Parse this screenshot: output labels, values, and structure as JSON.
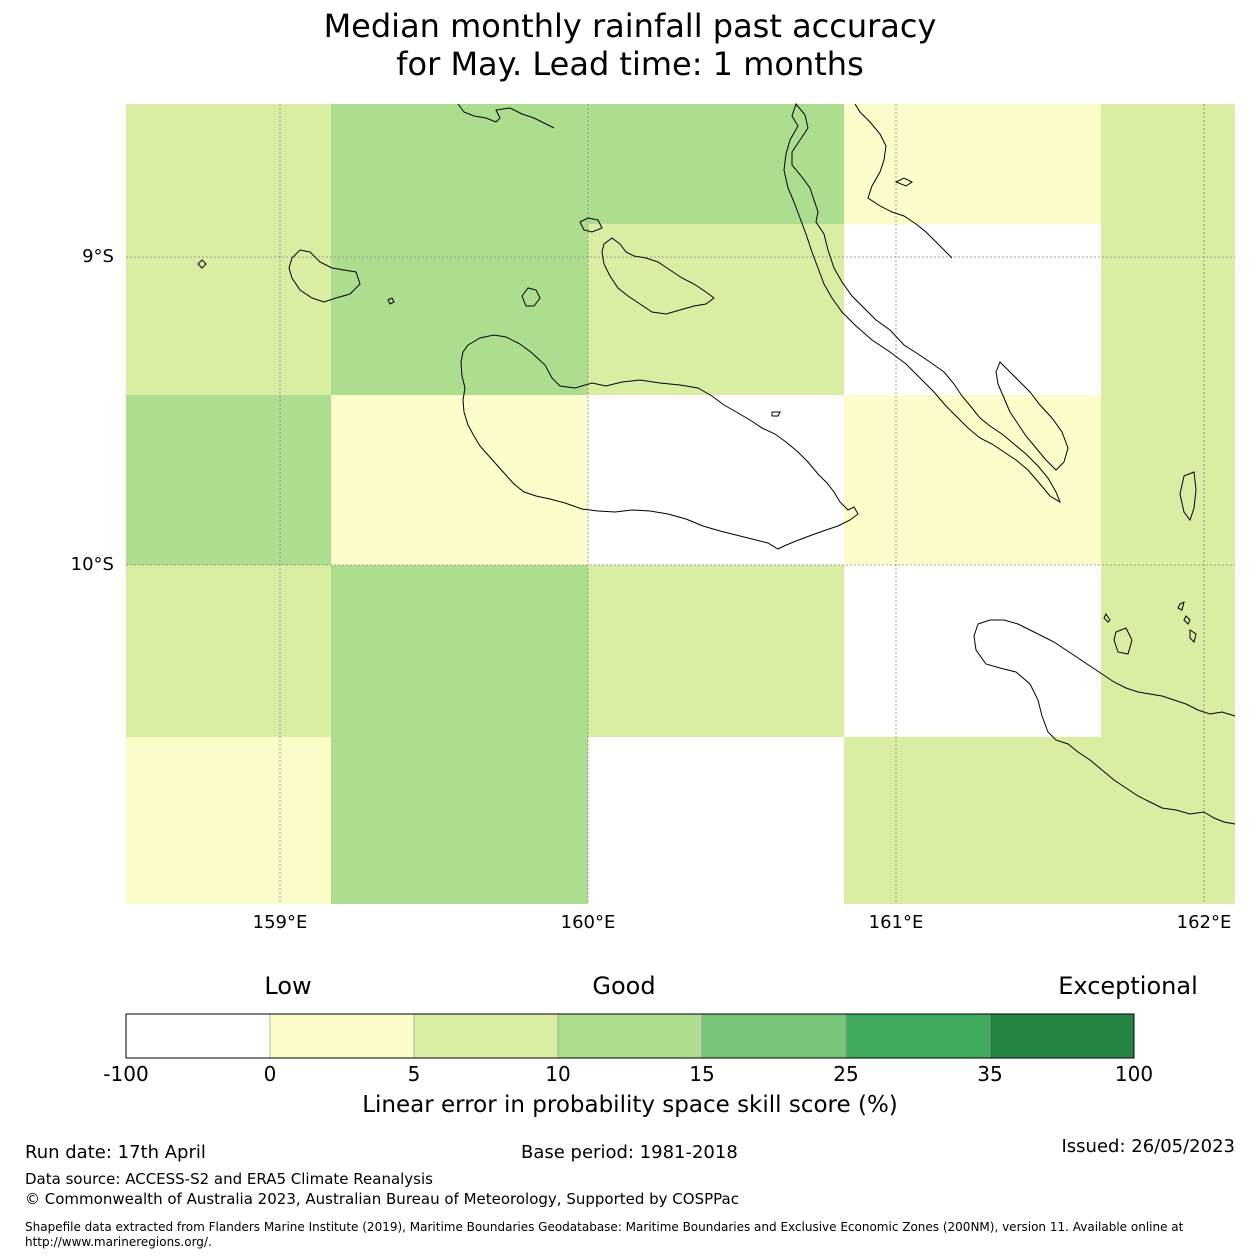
{
  "title": {
    "line1": "Median monthly rainfall past accuracy",
    "line2": "for May. Lead time: 1 months"
  },
  "map": {
    "lat_labels": [
      "9°S",
      "10°S"
    ],
    "lon_labels": [
      "159°E",
      "160°E",
      "161°E",
      "162°E"
    ],
    "skill_colors": {
      "neg": "#ffffff",
      "0-5": "#fdfdcb",
      "5-10": "#d9eea2",
      "10-15": "#addd8e",
      "15-25": "#78c479",
      "25-35": "#41ab5d",
      "35-100": "#238443"
    },
    "grid_skill_categories": [
      [
        "5-10",
        "10-15",
        "10-15",
        "0-5",
        "5-10"
      ],
      [
        "5-10",
        "10-15",
        "5-10",
        "neg",
        "5-10"
      ],
      [
        "10-15",
        "0-5",
        "neg",
        "0-5",
        "5-10"
      ],
      [
        "5-10",
        "10-15",
        "5-10",
        "neg",
        "5-10"
      ],
      [
        "0-5",
        "10-15",
        "neg",
        "5-10",
        "5-10"
      ]
    ]
  },
  "colorbar": {
    "categories": {
      "low": "Low",
      "good": "Good",
      "exceptional": "Exceptional"
    },
    "ticks": [
      "-100",
      "0",
      "5",
      "10",
      "15",
      "25",
      "35",
      "100"
    ],
    "label": "Linear error in probability space skill score (%)"
  },
  "footer": {
    "run_date": "Run date: 17th April",
    "base_period": "Base period: 1981-2018",
    "issued": "Issued: 26/05/2023",
    "data_source": "Data source: ACCESS-S2 and ERA5 Climate Reanalysis",
    "copyright": "© Commonwealth of Australia 2023, Australian Bureau of Meteorology, Supported by COSPPac",
    "shapefile": "Shapefile data extracted from Flanders Marine Institute (2019), Maritime Boundaries Geodatabase: Maritime Boundaries and Exclusive Economic Zones (200NM), version 11. Available online at http://www.marineregions.org/."
  }
}
